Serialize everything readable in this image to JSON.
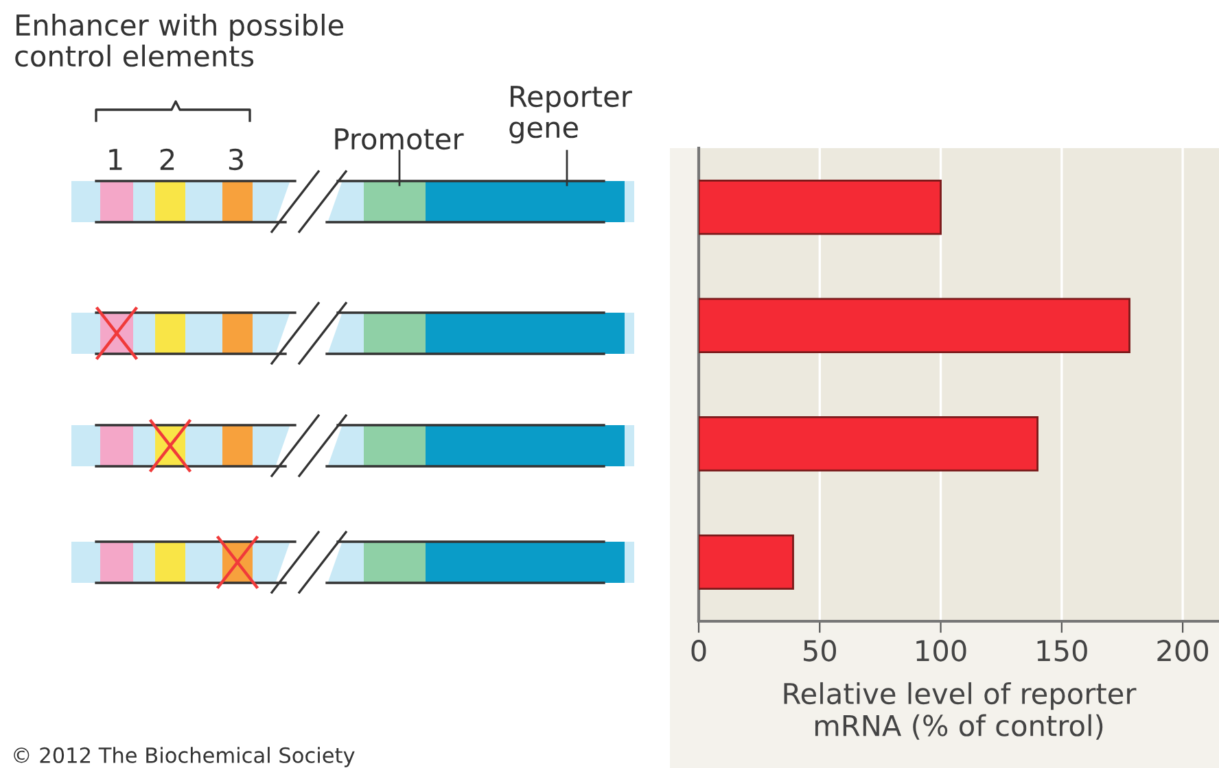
{
  "chart_data": {
    "type": "bar",
    "orientation": "horizontal",
    "categories": [
      null,
      null,
      null,
      null
    ],
    "values": [
      100,
      178,
      140,
      39
    ],
    "color": "#f42a35",
    "xlim": [
      0,
      215
    ],
    "xticks": [
      0,
      50,
      100,
      150,
      200
    ],
    "xlabel": "Relative level of reporter\nmRNA (% of control)",
    "grid": "x",
    "annotations": [
      "Enhancer with possible\ncontrol elements",
      "1",
      "2",
      "3",
      "Promoter",
      "Reporter\ngene",
      "© 2012 The Biochemical Society"
    ]
  }
}
